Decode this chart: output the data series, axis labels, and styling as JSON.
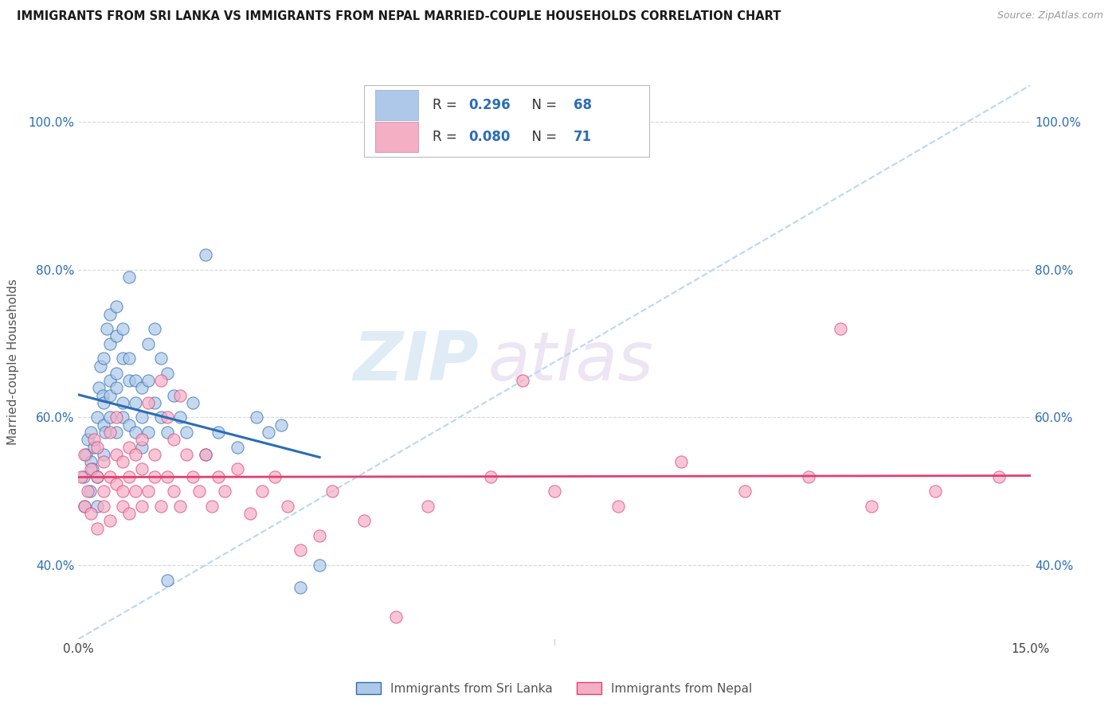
{
  "title": "IMMIGRANTS FROM SRI LANKA VS IMMIGRANTS FROM NEPAL MARRIED-COUPLE HOUSEHOLDS CORRELATION CHART",
  "source": "Source: ZipAtlas.com",
  "ylabel": "Married-couple Households",
  "xmin": 0.0,
  "xmax": 0.15,
  "ymin": 0.3,
  "ymax": 1.05,
  "yticks": [
    0.4,
    0.6,
    0.8,
    1.0
  ],
  "ytick_labels": [
    "40.0%",
    "60.0%",
    "80.0%",
    "100.0%"
  ],
  "xtick_positions": [
    0.0,
    0.015,
    0.03,
    0.045,
    0.06,
    0.075,
    0.09,
    0.105,
    0.12,
    0.135,
    0.15
  ],
  "xtick_labels_show": {
    "0.0": "0.0%",
    "0.15": "15.0%"
  },
  "sri_lanka_R": 0.296,
  "sri_lanka_N": 68,
  "nepal_R": 0.08,
  "nepal_N": 71,
  "sri_lanka_color": "#adc8e8",
  "nepal_color": "#f5afc5",
  "sri_lanka_line_color": "#2b6db5",
  "nepal_line_color": "#e04070",
  "diagonal_color": "#b8d8f0",
  "background_color": "#ffffff",
  "grid_color": "#d8d8d8",
  "watermark_zip": "ZIP",
  "watermark_atlas": "atlas",
  "legend_box_color": "#f0f4ff",
  "sri_lanka_scatter_x": [
    0.0008,
    0.001,
    0.0012,
    0.0015,
    0.0018,
    0.002,
    0.002,
    0.0022,
    0.0025,
    0.003,
    0.003,
    0.003,
    0.0032,
    0.0035,
    0.0038,
    0.004,
    0.004,
    0.004,
    0.004,
    0.0042,
    0.0045,
    0.005,
    0.005,
    0.005,
    0.005,
    0.005,
    0.006,
    0.006,
    0.006,
    0.006,
    0.006,
    0.007,
    0.007,
    0.007,
    0.007,
    0.008,
    0.008,
    0.008,
    0.008,
    0.009,
    0.009,
    0.009,
    0.01,
    0.01,
    0.01,
    0.011,
    0.011,
    0.011,
    0.012,
    0.012,
    0.013,
    0.013,
    0.014,
    0.014,
    0.015,
    0.016,
    0.017,
    0.018,
    0.02,
    0.022,
    0.025,
    0.028,
    0.03,
    0.032,
    0.035,
    0.038,
    0.02,
    0.014
  ],
  "sri_lanka_scatter_y": [
    0.52,
    0.48,
    0.55,
    0.57,
    0.5,
    0.54,
    0.58,
    0.53,
    0.56,
    0.6,
    0.52,
    0.48,
    0.64,
    0.67,
    0.63,
    0.55,
    0.59,
    0.62,
    0.68,
    0.58,
    0.72,
    0.65,
    0.6,
    0.7,
    0.74,
    0.63,
    0.66,
    0.58,
    0.75,
    0.71,
    0.64,
    0.68,
    0.6,
    0.72,
    0.62,
    0.65,
    0.59,
    0.79,
    0.68,
    0.62,
    0.58,
    0.65,
    0.6,
    0.56,
    0.64,
    0.7,
    0.58,
    0.65,
    0.62,
    0.72,
    0.6,
    0.68,
    0.58,
    0.66,
    0.63,
    0.6,
    0.58,
    0.62,
    0.55,
    0.58,
    0.56,
    0.6,
    0.58,
    0.59,
    0.37,
    0.4,
    0.82,
    0.38
  ],
  "nepal_scatter_x": [
    0.0005,
    0.001,
    0.001,
    0.0015,
    0.002,
    0.002,
    0.0025,
    0.003,
    0.003,
    0.003,
    0.004,
    0.004,
    0.004,
    0.005,
    0.005,
    0.005,
    0.006,
    0.006,
    0.006,
    0.007,
    0.007,
    0.007,
    0.008,
    0.008,
    0.008,
    0.009,
    0.009,
    0.01,
    0.01,
    0.01,
    0.011,
    0.011,
    0.012,
    0.012,
    0.013,
    0.013,
    0.014,
    0.014,
    0.015,
    0.015,
    0.016,
    0.016,
    0.017,
    0.018,
    0.019,
    0.02,
    0.021,
    0.022,
    0.023,
    0.025,
    0.027,
    0.029,
    0.031,
    0.033,
    0.035,
    0.038,
    0.04,
    0.045,
    0.05,
    0.055,
    0.065,
    0.075,
    0.085,
    0.095,
    0.105,
    0.115,
    0.125,
    0.135,
    0.145,
    0.12,
    0.07
  ],
  "nepal_scatter_y": [
    0.52,
    0.48,
    0.55,
    0.5,
    0.53,
    0.47,
    0.57,
    0.45,
    0.52,
    0.56,
    0.48,
    0.54,
    0.5,
    0.52,
    0.58,
    0.46,
    0.55,
    0.51,
    0.6,
    0.5,
    0.54,
    0.48,
    0.56,
    0.52,
    0.47,
    0.55,
    0.5,
    0.53,
    0.48,
    0.57,
    0.62,
    0.5,
    0.55,
    0.52,
    0.48,
    0.65,
    0.6,
    0.52,
    0.57,
    0.5,
    0.48,
    0.63,
    0.55,
    0.52,
    0.5,
    0.55,
    0.48,
    0.52,
    0.5,
    0.53,
    0.47,
    0.5,
    0.52,
    0.48,
    0.42,
    0.44,
    0.5,
    0.46,
    0.33,
    0.48,
    0.52,
    0.5,
    0.48,
    0.54,
    0.5,
    0.52,
    0.48,
    0.5,
    0.52,
    0.72,
    0.65
  ]
}
